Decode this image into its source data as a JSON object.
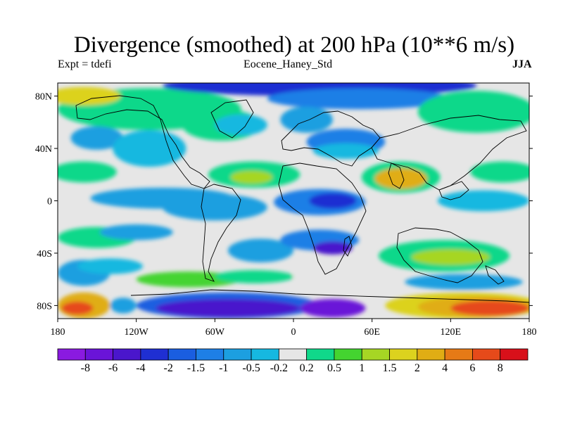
{
  "title": "Divergence (smoothed) at 200 hPa (10**6 m/s)",
  "subtitle_left": "Expt = tdefi",
  "subtitle_center": "Eocene_Haney_Std",
  "subtitle_right": "JJA",
  "map": {
    "projection": "cylindrical-equidistant",
    "lon_range": [
      -180,
      180
    ],
    "lat_range": [
      -90,
      90
    ],
    "y_ticks": [
      {
        "lat": 80,
        "label": "80N"
      },
      {
        "lat": 40,
        "label": "40N"
      },
      {
        "lat": 0,
        "label": "0"
      },
      {
        "lat": -40,
        "label": "40S"
      },
      {
        "lat": -80,
        "label": "80S"
      }
    ],
    "x_ticks": [
      {
        "lon": -180,
        "label": "180"
      },
      {
        "lon": -120,
        "label": "120W"
      },
      {
        "lon": -60,
        "label": "60W"
      },
      {
        "lon": 0,
        "label": "0"
      },
      {
        "lon": 60,
        "label": "60E"
      },
      {
        "lon": 120,
        "label": "120E"
      },
      {
        "lon": 180,
        "label": "180"
      }
    ],
    "background_color": "#e6e6e6"
  },
  "colorbar": {
    "colors": [
      "#8a1ae0",
      "#6a14d8",
      "#4a16cc",
      "#1f2fd2",
      "#1a5ee0",
      "#1e7fe6",
      "#1c9fe0",
      "#16b8e0",
      "#e6e6e6",
      "#10d88a",
      "#44d430",
      "#a6d624",
      "#dcd21e",
      "#e0ad14",
      "#e67a16",
      "#e64a1a",
      "#d8101a"
    ],
    "labels": [
      "-8",
      "-6",
      "-4",
      "-2",
      "-1.5",
      "-1",
      "-0.5",
      "-0.2",
      "0.2",
      "0.5",
      "1",
      "1.5",
      "2",
      "4",
      "6",
      "8"
    ]
  },
  "field_blobs": [
    {
      "lon": -110,
      "lat": 70,
      "rx": 70,
      "ry": 16,
      "color": "#10d88a"
    },
    {
      "lon": -160,
      "lat": 80,
      "rx": 28,
      "ry": 7,
      "color": "#dcd21e"
    },
    {
      "lon": 20,
      "lat": 88,
      "rx": 120,
      "ry": 8,
      "color": "#1f2fd2"
    },
    {
      "lon": 50,
      "lat": 78,
      "rx": 70,
      "ry": 8,
      "color": "#1e7fe6"
    },
    {
      "lon": 140,
      "lat": 68,
      "rx": 45,
      "ry": 16,
      "color": "#10d88a"
    },
    {
      "lon": -55,
      "lat": 58,
      "rx": 30,
      "ry": 12,
      "color": "#10d88a"
    },
    {
      "lon": -150,
      "lat": 48,
      "rx": 20,
      "ry": 9,
      "color": "#1c9fe0"
    },
    {
      "lon": -160,
      "lat": 22,
      "rx": 25,
      "ry": 8,
      "color": "#10d88a"
    },
    {
      "lon": -110,
      "lat": 40,
      "rx": 28,
      "ry": 14,
      "color": "#16b8e0"
    },
    {
      "lon": -40,
      "lat": 58,
      "rx": 20,
      "ry": 8,
      "color": "#16b8e0"
    },
    {
      "lon": 10,
      "lat": 62,
      "rx": 20,
      "ry": 10,
      "color": "#1c9fe0"
    },
    {
      "lon": 40,
      "lat": 45,
      "rx": 30,
      "ry": 10,
      "color": "#1e7fe6"
    },
    {
      "lon": 40,
      "lat": 38,
      "rx": 25,
      "ry": 6,
      "color": "#16b8e0"
    },
    {
      "lon": -30,
      "lat": 20,
      "rx": 35,
      "ry": 10,
      "color": "#10d88a"
    },
    {
      "lon": -32,
      "lat": 18,
      "rx": 16,
      "ry": 5,
      "color": "#a6d624"
    },
    {
      "lon": 82,
      "lat": 18,
      "rx": 30,
      "ry": 12,
      "color": "#10d88a"
    },
    {
      "lon": 82,
      "lat": 17,
      "rx": 20,
      "ry": 8,
      "color": "#e0ad14"
    },
    {
      "lon": 160,
      "lat": 22,
      "rx": 25,
      "ry": 8,
      "color": "#10d88a"
    },
    {
      "lon": 145,
      "lat": 0,
      "rx": 35,
      "ry": 8,
      "color": "#16b8e0"
    },
    {
      "lon": -100,
      "lat": 2,
      "rx": 55,
      "ry": 8,
      "color": "#1c9fe0"
    },
    {
      "lon": -60,
      "lat": -5,
      "rx": 40,
      "ry": 10,
      "color": "#1c9fe0"
    },
    {
      "lon": 20,
      "lat": -1,
      "rx": 35,
      "ry": 10,
      "color": "#1e7fe6"
    },
    {
      "lon": 30,
      "lat": 0,
      "rx": 18,
      "ry": 6,
      "color": "#1f2fd2"
    },
    {
      "lon": -150,
      "lat": -28,
      "rx": 30,
      "ry": 8,
      "color": "#10d88a"
    },
    {
      "lon": -120,
      "lat": -24,
      "rx": 28,
      "ry": 6,
      "color": "#1c9fe0"
    },
    {
      "lon": -25,
      "lat": -38,
      "rx": 25,
      "ry": 9,
      "color": "#1c9fe0"
    },
    {
      "lon": 20,
      "lat": -30,
      "rx": 30,
      "ry": 8,
      "color": "#1e7fe6"
    },
    {
      "lon": 30,
      "lat": -36,
      "rx": 15,
      "ry": 5,
      "color": "#4a16cc"
    },
    {
      "lon": 115,
      "lat": -42,
      "rx": 50,
      "ry": 12,
      "color": "#10d88a"
    },
    {
      "lon": 120,
      "lat": -43,
      "rx": 30,
      "ry": 6,
      "color": "#a6d624"
    },
    {
      "lon": -160,
      "lat": -55,
      "rx": 20,
      "ry": 10,
      "color": "#1c9fe0"
    },
    {
      "lon": -140,
      "lat": -50,
      "rx": 25,
      "ry": 6,
      "color": "#16b8e0"
    },
    {
      "lon": -80,
      "lat": -60,
      "rx": 40,
      "ry": 6,
      "color": "#44d430"
    },
    {
      "lon": -30,
      "lat": -58,
      "rx": 30,
      "ry": 5,
      "color": "#10d88a"
    },
    {
      "lon": 30,
      "lat": -57,
      "rx": 30,
      "ry": 5,
      "color": "#e6e6e6"
    },
    {
      "lon": 130,
      "lat": -62,
      "rx": 45,
      "ry": 6,
      "color": "#1c9fe0"
    },
    {
      "lon": -160,
      "lat": -80,
      "rx": 20,
      "ry": 10,
      "color": "#e0ad14"
    },
    {
      "lon": -165,
      "lat": -82,
      "rx": 12,
      "ry": 5,
      "color": "#e64a1a"
    },
    {
      "lon": -130,
      "lat": -80,
      "rx": 10,
      "ry": 6,
      "color": "#1c9fe0"
    },
    {
      "lon": -50,
      "lat": -80,
      "rx": 70,
      "ry": 10,
      "color": "#1a5ee0"
    },
    {
      "lon": -50,
      "lat": -82,
      "rx": 55,
      "ry": 7,
      "color": "#4a16cc"
    },
    {
      "lon": 30,
      "lat": -82,
      "rx": 25,
      "ry": 7,
      "color": "#6a14d8"
    },
    {
      "lon": 130,
      "lat": -80,
      "rx": 60,
      "ry": 10,
      "color": "#dcd21e"
    },
    {
      "lon": 140,
      "lat": -81,
      "rx": 45,
      "ry": 8,
      "color": "#e0ad14"
    },
    {
      "lon": 150,
      "lat": -82,
      "rx": 30,
      "ry": 6,
      "color": "#e64a1a"
    }
  ]
}
